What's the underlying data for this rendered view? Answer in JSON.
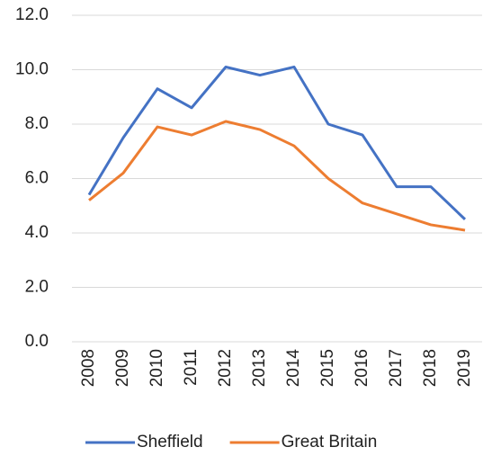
{
  "chart_data": {
    "type": "line",
    "categories": [
      "2008",
      "2009",
      "2010",
      "2011",
      "2012",
      "2013",
      "2014",
      "2015",
      "2016",
      "2017",
      "2018",
      "2019"
    ],
    "series": [
      {
        "name": "Sheffield",
        "color": "#4472c4",
        "values": [
          5.4,
          7.5,
          9.3,
          8.6,
          10.1,
          9.8,
          10.1,
          8.0,
          7.6,
          5.7,
          5.7,
          4.5
        ]
      },
      {
        "name": "Great Britain",
        "color": "#ed7d31",
        "values": [
          5.2,
          6.2,
          7.9,
          7.6,
          8.1,
          7.8,
          7.2,
          6.0,
          5.1,
          4.7,
          4.3,
          4.1
        ]
      }
    ],
    "ylim": [
      0,
      12
    ],
    "yticks": [
      {
        "value": 0,
        "label": "0.0"
      },
      {
        "value": 2,
        "label": "2.0"
      },
      {
        "value": 4,
        "label": "4.0"
      },
      {
        "value": 6,
        "label": "6.0"
      },
      {
        "value": 8,
        "label": "8.0"
      },
      {
        "value": 10,
        "label": "10.0"
      },
      {
        "value": 12,
        "label": "12.0"
      }
    ],
    "grid": true,
    "legend": "bottom"
  }
}
